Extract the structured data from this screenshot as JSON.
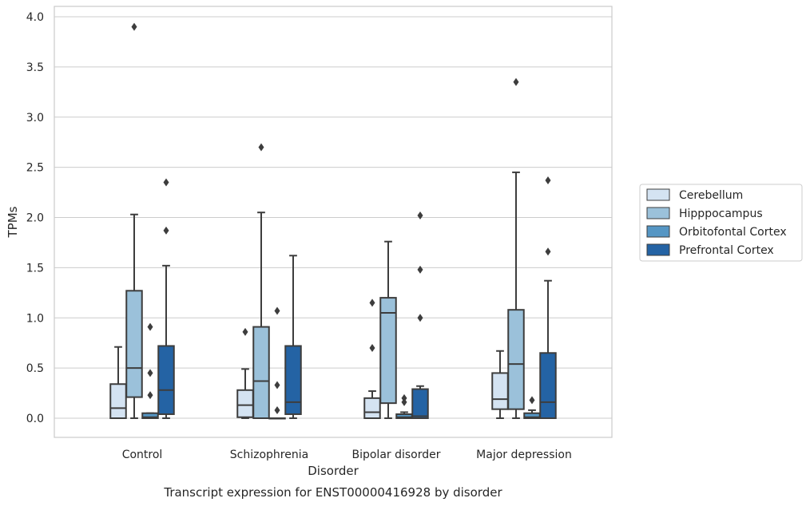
{
  "chart_data": {
    "type": "box",
    "title": "",
    "caption": "Transcript expression for ENST00000416928 by disorder",
    "xlabel": "Disorder",
    "ylabel": "TPMs",
    "ylim": [
      -0.19,
      4.09
    ],
    "yticks": [
      "0.0",
      "0.5",
      "1.0",
      "1.5",
      "2.0",
      "2.5",
      "3.0",
      "3.5",
      "4.0"
    ],
    "grid": true,
    "legend_position": "right",
    "categories": [
      "Control",
      "Schizophrenia",
      "Bipolar disorder",
      "Major depression"
    ],
    "series": [
      {
        "name": "Cerebellum",
        "color": "#d4e3f2",
        "boxes": [
          {
            "whisker_low": 0.0,
            "q1": 0.0,
            "median": 0.1,
            "q3": 0.34,
            "whisker_high": 0.71,
            "outliers": []
          },
          {
            "whisker_low": 0.0,
            "q1": 0.01,
            "median": 0.13,
            "q3": 0.28,
            "whisker_high": 0.49,
            "outliers": [
              0.86
            ]
          },
          {
            "whisker_low": 0.0,
            "q1": 0.0,
            "median": 0.06,
            "q3": 0.2,
            "whisker_high": 0.27,
            "outliers": [
              0.7,
              1.15
            ]
          },
          {
            "whisker_low": 0.0,
            "q1": 0.09,
            "median": 0.19,
            "q3": 0.45,
            "whisker_high": 0.67,
            "outliers": []
          }
        ]
      },
      {
        "name": "Hipppocampus",
        "color": "#9bc1da",
        "boxes": [
          {
            "whisker_low": 0.0,
            "q1": 0.21,
            "median": 0.5,
            "q3": 1.27,
            "whisker_high": 2.03,
            "outliers": [
              3.9
            ]
          },
          {
            "whisker_low": 0.0,
            "q1": 0.0,
            "median": 0.37,
            "q3": 0.91,
            "whisker_high": 2.05,
            "outliers": [
              2.7
            ]
          },
          {
            "whisker_low": 0.0,
            "q1": 0.15,
            "median": 1.05,
            "q3": 1.2,
            "whisker_high": 1.76,
            "outliers": []
          },
          {
            "whisker_low": 0.0,
            "q1": 0.09,
            "median": 0.54,
            "q3": 1.08,
            "whisker_high": 2.45,
            "outliers": [
              3.35
            ]
          }
        ]
      },
      {
        "name": "Orbitofontal Cortex",
        "color": "#5596c4",
        "boxes": [
          {
            "whisker_low": 0.0,
            "q1": 0.0,
            "median": 0.01,
            "q3": 0.05,
            "whisker_high": 0.05,
            "outliers": [
              0.23,
              0.45,
              0.91
            ]
          },
          {
            "whisker_low": 0.0,
            "q1": 0.0,
            "median": 0.0,
            "q3": 0.0,
            "whisker_high": 0.0,
            "outliers": [
              0.08,
              0.33,
              1.07
            ]
          },
          {
            "whisker_low": 0.0,
            "q1": 0.0,
            "median": 0.01,
            "q3": 0.04,
            "whisker_high": 0.06,
            "outliers": [
              0.16,
              0.2
            ]
          },
          {
            "whisker_low": 0.0,
            "q1": 0.0,
            "median": 0.01,
            "q3": 0.05,
            "whisker_high": 0.08,
            "outliers": [
              0.18
            ]
          }
        ]
      },
      {
        "name": "Prefrontal Cortex",
        "color": "#2463a4",
        "boxes": [
          {
            "whisker_low": 0.0,
            "q1": 0.04,
            "median": 0.28,
            "q3": 0.72,
            "whisker_high": 1.52,
            "outliers": [
              1.87,
              2.35
            ]
          },
          {
            "whisker_low": 0.0,
            "q1": 0.04,
            "median": 0.16,
            "q3": 0.72,
            "whisker_high": 1.62,
            "outliers": []
          },
          {
            "whisker_low": 0.0,
            "q1": 0.0,
            "median": 0.02,
            "q3": 0.29,
            "whisker_high": 0.32,
            "outliers": [
              1.0,
              1.48,
              2.02
            ]
          },
          {
            "whisker_low": 0.0,
            "q1": 0.0,
            "median": 0.16,
            "q3": 0.65,
            "whisker_high": 1.37,
            "outliers": [
              1.66,
              2.37
            ]
          }
        ]
      }
    ]
  }
}
